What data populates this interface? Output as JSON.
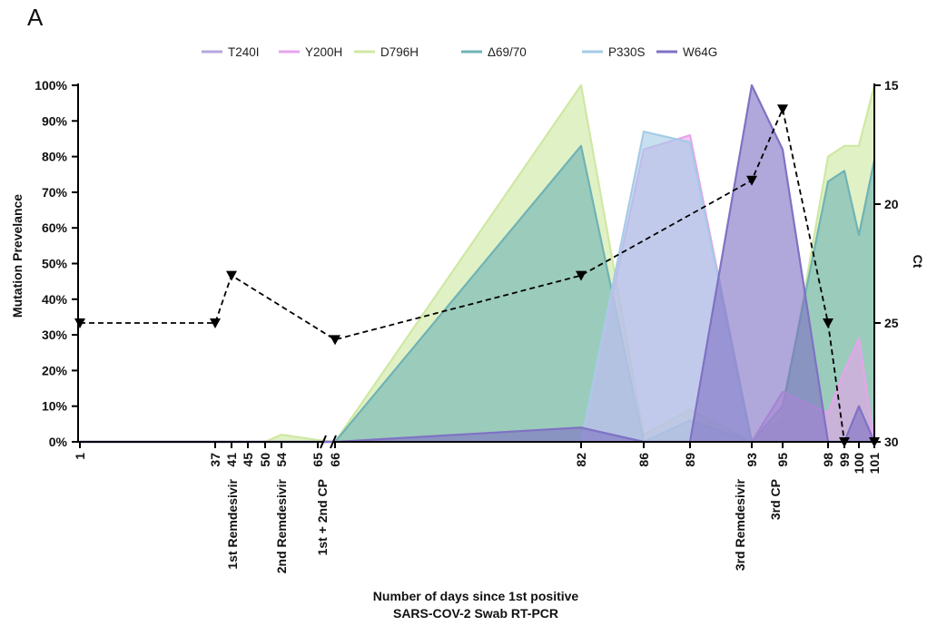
{
  "panel_label": "A",
  "chart_data": {
    "type": "area",
    "x_tick_labels": [
      {
        "x": 1,
        "label": "1"
      },
      {
        "x": 37,
        "label": "37"
      },
      {
        "x": 41,
        "label": "41"
      },
      {
        "x": 45,
        "label": "45"
      },
      {
        "x": 50,
        "label": "50"
      },
      {
        "x": 54,
        "label": "54"
      },
      {
        "x": 65,
        "label": "65"
      },
      {
        "x": 66,
        "label": "66"
      },
      {
        "x": 82,
        "label": "82"
      },
      {
        "x": 86,
        "label": "86"
      },
      {
        "x": 89,
        "label": "89"
      },
      {
        "x": 93,
        "label": "93"
      },
      {
        "x": 95,
        "label": "95"
      },
      {
        "x": 98,
        "label": "98"
      },
      {
        "x": 99,
        "label": "99"
      },
      {
        "x": 100,
        "label": "100"
      },
      {
        "x": 101,
        "label": "101"
      }
    ],
    "events": [
      {
        "x": 37,
        "label": "1st Remdesivir"
      },
      {
        "x": 54,
        "label": "2nd Remdesivir"
      },
      {
        "x": 65,
        "label": "1st + 2nd CP"
      },
      {
        "x": 93,
        "label": "3rd Remdesivir"
      },
      {
        "x": 95,
        "label": "3rd CP"
      }
    ],
    "xlabel_lines": [
      "Number of days since 1st positive",
      "SARS-COV-2 Swab RT-PCR"
    ],
    "ylabel": "Mutation Prevelance",
    "y2label": "Ct",
    "ylim": [
      0,
      100
    ],
    "y_ticks": [
      "0%",
      "10%",
      "20%",
      "30%",
      "40%",
      "50%",
      "60%",
      "70%",
      "80%",
      "90%",
      "100%"
    ],
    "y2lim": [
      30,
      15
    ],
    "y2_ticks": [
      "15",
      "20",
      "25",
      "30"
    ],
    "legend_position": "top",
    "series": [
      {
        "name": "D796H",
        "color": "#cfe8a3",
        "points": [
          [
            1,
            0
          ],
          [
            37,
            0
          ],
          [
            41,
            0
          ],
          [
            45,
            0
          ],
          [
            50,
            0
          ],
          [
            54,
            2
          ],
          [
            65,
            0.5
          ],
          [
            66,
            0
          ],
          [
            82,
            100
          ],
          [
            86,
            2
          ],
          [
            89,
            9
          ],
          [
            93,
            0
          ],
          [
            95,
            7
          ],
          [
            98,
            80
          ],
          [
            99,
            83
          ],
          [
            100,
            83
          ],
          [
            101,
            100
          ]
        ]
      },
      {
        "name": "Δ69/70",
        "color": "#6fb3b5",
        "points": [
          [
            1,
            0
          ],
          [
            37,
            0
          ],
          [
            41,
            0
          ],
          [
            45,
            0
          ],
          [
            50,
            0
          ],
          [
            54,
            0
          ],
          [
            65,
            0
          ],
          [
            66,
            0
          ],
          [
            82,
            83
          ],
          [
            86,
            0
          ],
          [
            89,
            6
          ],
          [
            93,
            0
          ],
          [
            95,
            10
          ],
          [
            98,
            73
          ],
          [
            99,
            76
          ],
          [
            100,
            58
          ],
          [
            101,
            79
          ]
        ]
      },
      {
        "name": "T240I",
        "color": "#b7a6e0",
        "points": [
          [
            1,
            0
          ],
          [
            37,
            0
          ],
          [
            41,
            0
          ],
          [
            45,
            0
          ],
          [
            50,
            0
          ],
          [
            54,
            0
          ],
          [
            65,
            0
          ],
          [
            66,
            0
          ],
          [
            82,
            0
          ],
          [
            86,
            0
          ],
          [
            89,
            0
          ],
          [
            93,
            0
          ],
          [
            95,
            0
          ],
          [
            98,
            0
          ],
          [
            99,
            0
          ],
          [
            100,
            0
          ],
          [
            101,
            0
          ]
        ]
      },
      {
        "name": "Y200H",
        "color": "#e6a4ec",
        "points": [
          [
            1,
            0
          ],
          [
            37,
            0
          ],
          [
            41,
            0
          ],
          [
            45,
            0
          ],
          [
            50,
            0
          ],
          [
            54,
            0
          ],
          [
            65,
            0
          ],
          [
            66,
            0
          ],
          [
            82,
            0
          ],
          [
            86,
            82
          ],
          [
            89,
            86
          ],
          [
            93,
            0
          ],
          [
            95,
            14
          ],
          [
            98,
            8
          ],
          [
            99,
            20
          ],
          [
            100,
            29
          ],
          [
            101,
            0
          ]
        ]
      },
      {
        "name": "P330S",
        "color": "#a6cbe6",
        "points": [
          [
            1,
            0
          ],
          [
            37,
            0
          ],
          [
            41,
            0
          ],
          [
            45,
            0
          ],
          [
            50,
            0
          ],
          [
            54,
            0
          ],
          [
            65,
            0
          ],
          [
            66,
            0
          ],
          [
            82,
            0
          ],
          [
            86,
            87
          ],
          [
            89,
            84
          ],
          [
            93,
            0
          ],
          [
            95,
            0
          ],
          [
            98,
            0
          ],
          [
            99,
            0
          ],
          [
            100,
            0
          ],
          [
            101,
            0
          ]
        ]
      },
      {
        "name": "W64G",
        "color": "#7f72c4",
        "points": [
          [
            1,
            0
          ],
          [
            37,
            0
          ],
          [
            41,
            0
          ],
          [
            45,
            0
          ],
          [
            50,
            0
          ],
          [
            54,
            0
          ],
          [
            65,
            0
          ],
          [
            66,
            0
          ],
          [
            82,
            4
          ],
          [
            86,
            0
          ],
          [
            89,
            0
          ],
          [
            93,
            100
          ],
          [
            95,
            82
          ],
          [
            98,
            0
          ],
          [
            99,
            0
          ],
          [
            100,
            10
          ],
          [
            101,
            0
          ]
        ]
      }
    ],
    "legend_order": [
      "T240I",
      "Y200H",
      "D796H",
      "Δ69/70",
      "P330S",
      "W64G"
    ],
    "ct_series": {
      "name": "Ct",
      "points": [
        [
          1,
          25
        ],
        [
          37,
          25
        ],
        [
          41,
          23
        ],
        [
          66,
          25.7
        ],
        [
          82,
          23
        ],
        [
          93,
          19
        ],
        [
          95,
          16
        ],
        [
          98,
          25
        ],
        [
          99,
          30
        ],
        [
          101,
          30
        ]
      ]
    }
  }
}
